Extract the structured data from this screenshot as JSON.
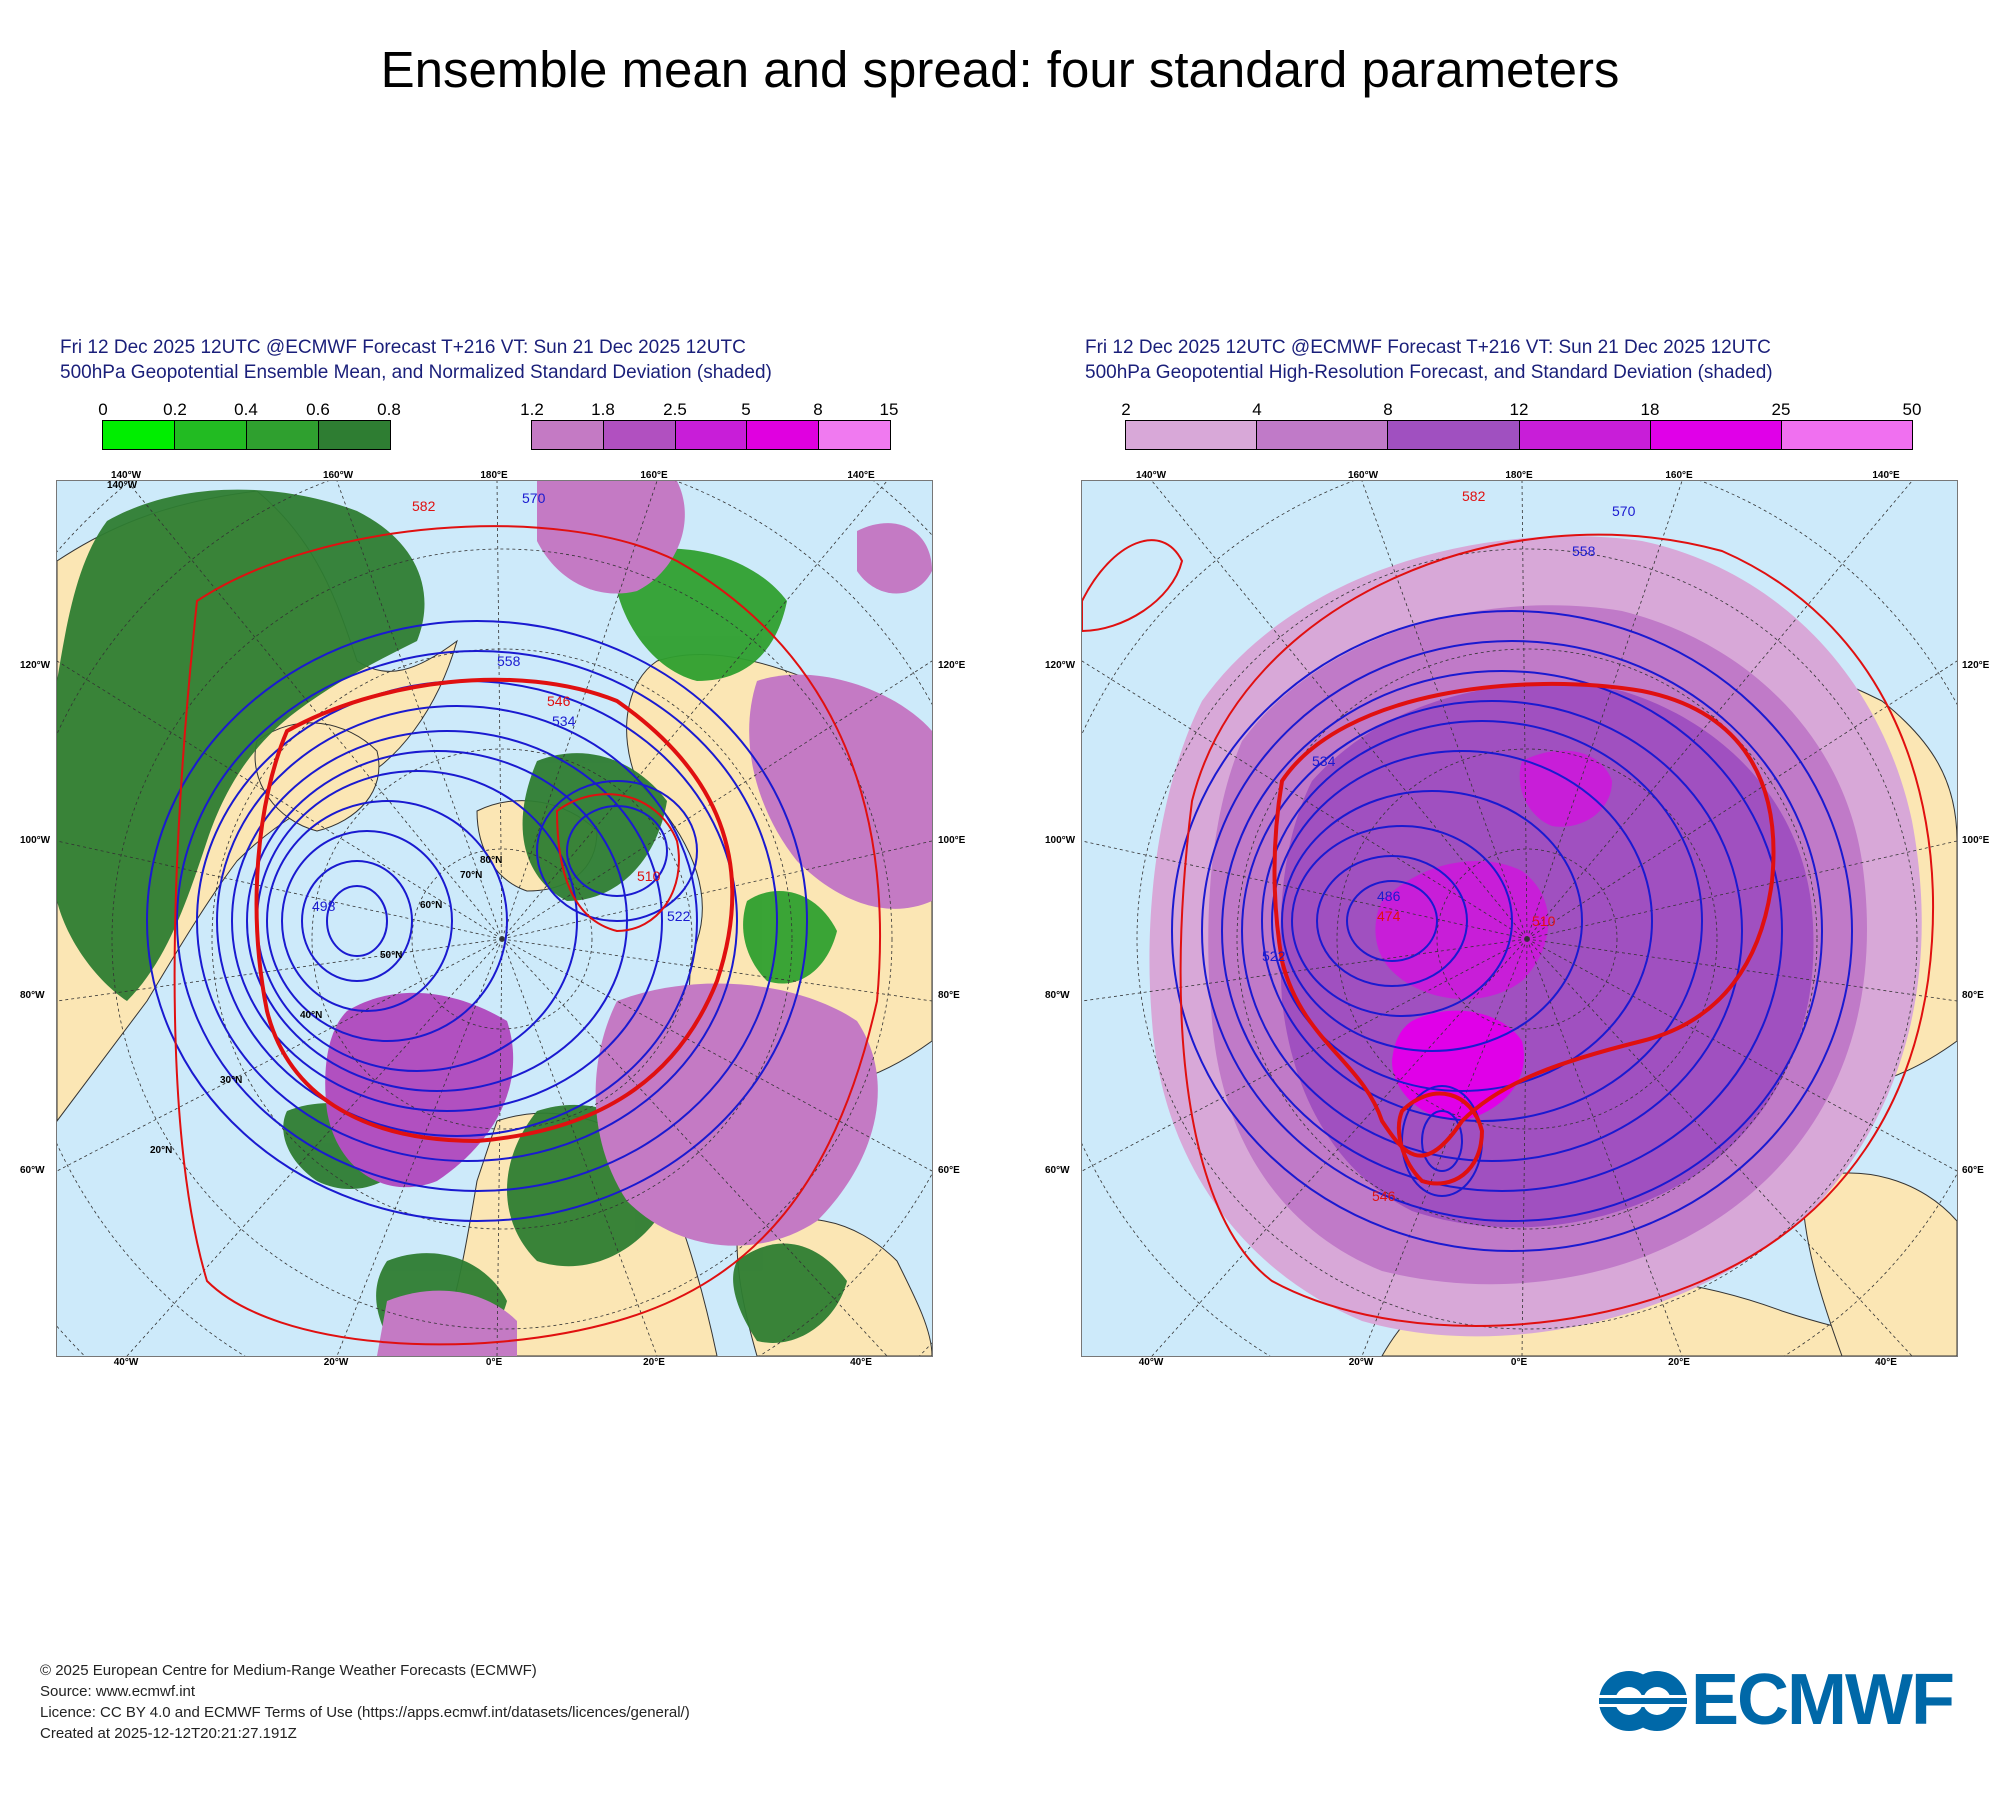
{
  "title": "Ensemble mean and spread: four standard parameters",
  "panels": [
    {
      "header_line1": "Fri 12 Dec 2025 12UTC @ECMWF Forecast T+216 VT: Sun 21 Dec 2025 12UTC",
      "header_line2": "500hPa Geopotential Ensemble Mean, and Normalized Standard Deviation (shaded)",
      "colorbar_green": {
        "ticks": [
          "0",
          "0.2",
          "0.4",
          "0.6",
          "0.8"
        ],
        "colors": [
          "#00ee00",
          "#22bb22",
          "#2fa02f",
          "#2e7d32"
        ]
      },
      "colorbar_purple": {
        "ticks": [
          "1.2",
          "1.8",
          "2.5",
          "5",
          "8",
          "15"
        ],
        "colors": [
          "#c47ac4",
          "#b150c0",
          "#c81ed8",
          "#e000e0",
          "#f07af0"
        ]
      },
      "contour_labels": [
        "582",
        "570",
        "558",
        "546",
        "534",
        "522",
        "510",
        "498"
      ]
    },
    {
      "header_line1": "Fri 12 Dec 2025 12UTC @ECMWF Forecast T+216 VT: Sun 21 Dec 2025 12UTC",
      "header_line2": "500hPa Geopotential High-Resolution Forecast, and Standard Deviation (shaded)",
      "colorbar": {
        "ticks": [
          "2",
          "4",
          "8",
          "12",
          "18",
          "25",
          "50"
        ],
        "colors": [
          "#d8a8d8",
          "#c07ac8",
          "#a050c0",
          "#c81ed8",
          "#e000e8",
          "#f070f0"
        ]
      },
      "contour_labels": [
        "582",
        "570",
        "558",
        "546",
        "534",
        "522",
        "510",
        "486",
        "474"
      ]
    }
  ],
  "map_labels": {
    "top_lon": [
      "140°W",
      "160°W",
      "180°E",
      "160°E",
      "140°E"
    ],
    "bottom_lon": [
      "40°W",
      "20°W",
      "0°E",
      "20°E",
      "40°E"
    ],
    "left_lon": [
      "120°W",
      "100°W",
      "80°W",
      "60°W"
    ],
    "right_lon": [
      "120°E",
      "100°E",
      "80°E",
      "60°E"
    ],
    "lat": [
      "20°N",
      "30°N",
      "40°N",
      "50°N",
      "60°N",
      "70°N",
      "80°N"
    ]
  },
  "footer": {
    "line1": "© 2025 European Centre for Medium-Range Weather Forecasts (ECMWF)",
    "line2": "Source: www.ecmwf.int",
    "line3": "Licence: CC BY 4.0 and ECMWF Terms of Use (https://apps.ecmwf.int/datasets/licences/general/)",
    "line4": "Created at 2025-12-12T20:21:27.191Z"
  },
  "logo_text": "ECMWF",
  "colors": {
    "ocean": "#cdeafa",
    "land": "#fbe6b4",
    "header_text": "#1a1f7a",
    "contour": "#1a1ad0",
    "contour_bold": "#e01010",
    "logo": "#0068a8"
  }
}
